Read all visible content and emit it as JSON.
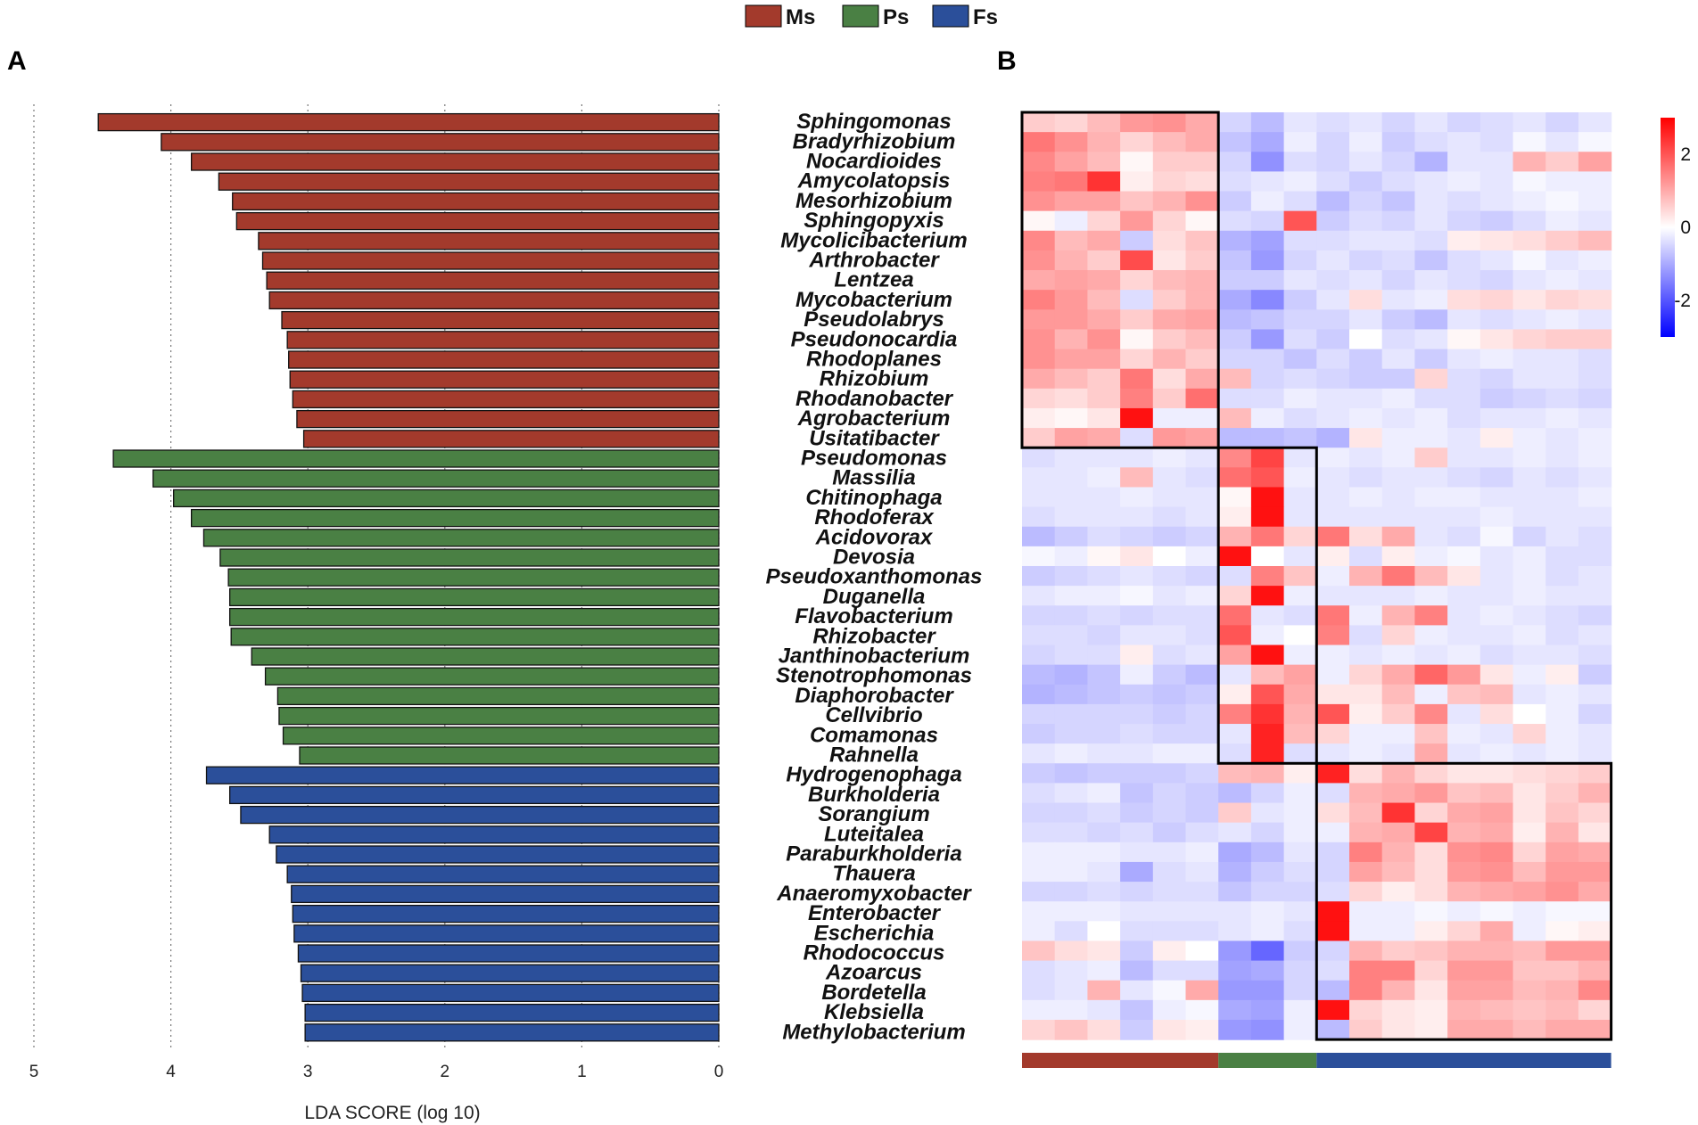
{
  "legend": [
    {
      "label": "Ms",
      "color": "#a33a2c"
    },
    {
      "label": "Ps",
      "color": "#4a8044"
    },
    {
      "label": "Fs",
      "color": "#2b4f9a"
    }
  ],
  "panel_a_letter": "A",
  "panel_b_letter": "B",
  "chart_data": [
    {
      "type": "bar",
      "orientation": "horizontal",
      "xlabel": "LDA SCORE (log 10)",
      "xlim": [
        5,
        0
      ],
      "xticks": [
        "5",
        "4",
        "3",
        "2",
        "1",
        "0"
      ],
      "grid": "vertical dotted",
      "groups": [
        {
          "name": "Ms",
          "color": "#a33a2c",
          "categories": [
            "Sphingomonas",
            "Bradyrhizobium",
            "Nocardioides",
            "Amycolatopsis",
            "Mesorhizobium",
            "Sphingopyxis",
            "Mycolicibacterium",
            "Arthrobacter",
            "Lentzea",
            "Mycobacterium",
            "Pseudolabrys",
            "Pseudonocardia",
            "Rhodoplanes",
            "Rhizobium",
            "Rhodanobacter",
            "Agrobacterium",
            "Usitatibacter"
          ],
          "values": [
            4.53,
            4.07,
            3.85,
            3.65,
            3.55,
            3.52,
            3.36,
            3.33,
            3.3,
            3.28,
            3.19,
            3.15,
            3.14,
            3.13,
            3.11,
            3.08,
            3.03
          ]
        },
        {
          "name": "Ps",
          "color": "#4a8044",
          "categories": [
            "Pseudomonas",
            "Massilia",
            "Chitinophaga",
            "Rhodoferax",
            "Acidovorax",
            "Devosia",
            "Pseudoxanthomonas",
            "Duganella",
            "Flavobacterium",
            "Rhizobacter",
            "Janthinobacterium",
            "Stenotrophomonas",
            "Diaphorobacter",
            "Cellvibrio",
            "Comamonas",
            "Rahnella"
          ],
          "values": [
            4.42,
            4.13,
            3.98,
            3.85,
            3.76,
            3.64,
            3.58,
            3.57,
            3.57,
            3.56,
            3.41,
            3.31,
            3.22,
            3.21,
            3.18,
            3.06
          ]
        },
        {
          "name": "Fs",
          "color": "#2b4f9a",
          "categories": [
            "Hydrogenophaga",
            "Burkholderia",
            "Sorangium",
            "Luteitalea",
            "Paraburkholderia",
            "Thauera",
            "Anaeromyxobacter",
            "Enterobacter",
            "Escherichia",
            "Rhodococcus",
            "Azoarcus",
            "Bordetella",
            "Klebsiella",
            "Methylobacterium"
          ],
          "values": [
            3.74,
            3.57,
            3.49,
            3.28,
            3.23,
            3.15,
            3.12,
            3.11,
            3.1,
            3.07,
            3.05,
            3.04,
            3.02,
            3.02
          ]
        }
      ]
    },
    {
      "type": "heatmap",
      "rows": [
        "Sphingomonas",
        "Bradyrhizobium",
        "Nocardioides",
        "Amycolatopsis",
        "Mesorhizobium",
        "Sphingopyxis",
        "Mycolicibacterium",
        "Arthrobacter",
        "Lentzea",
        "Mycobacterium",
        "Pseudolabrys",
        "Pseudonocardia",
        "Rhodoplanes",
        "Rhizobium",
        "Rhodanobacter",
        "Agrobacterium",
        "Usitatibacter",
        "Pseudomonas",
        "Massilia",
        "Chitinophaga",
        "Rhodoferax",
        "Acidovorax",
        "Devosia",
        "Pseudoxanthomonas",
        "Duganella",
        "Flavobacterium",
        "Rhizobacter",
        "Janthinobacterium",
        "Stenotrophomonas",
        "Diaphorobacter",
        "Cellvibrio",
        "Comamonas",
        "Rahnella",
        "Hydrogenophaga",
        "Burkholderia",
        "Sorangium",
        "Luteitalea",
        "Paraburkholderia",
        "Thauera",
        "Anaeromyxobacter",
        "Enterobacter",
        "Escherichia",
        "Rhodococcus",
        "Azoarcus",
        "Bordetella",
        "Klebsiella",
        "Methylobacterium"
      ],
      "column_groups": [
        {
          "name": "Ms",
          "color": "#a33a2c",
          "count": 6
        },
        {
          "name": "Ps",
          "color": "#4a8044",
          "count": 3
        },
        {
          "name": "Fs",
          "color": "#2b4f9a",
          "count": 9
        }
      ],
      "values": [
        [
          0.6,
          0.5,
          0.8,
          1.2,
          1.3,
          1.0,
          -0.5,
          -0.8,
          -0.3,
          -0.4,
          -0.3,
          -0.5,
          -0.3,
          -0.5,
          -0.4,
          -0.3,
          -0.5,
          -0.3
        ],
        [
          1.6,
          1.3,
          0.9,
          0.5,
          0.8,
          1.0,
          -0.7,
          -1.0,
          -0.2,
          -0.5,
          -0.2,
          -0.6,
          -0.4,
          -0.3,
          -0.4,
          -0.1,
          -0.3,
          -0.1
        ],
        [
          1.4,
          1.1,
          0.8,
          0.1,
          0.6,
          0.6,
          -0.5,
          -1.3,
          -0.4,
          -0.5,
          -0.3,
          -0.5,
          -0.9,
          -0.3,
          -0.3,
          0.9,
          0.6,
          1.1
        ],
        [
          1.5,
          1.6,
          2.4,
          0.2,
          0.5,
          0.4,
          -0.4,
          -0.3,
          -0.2,
          -0.4,
          -0.6,
          -0.4,
          -0.3,
          -0.2,
          -0.3,
          -0.1,
          -0.2,
          -0.2
        ],
        [
          1.3,
          1.1,
          1.1,
          0.7,
          0.9,
          1.3,
          -0.6,
          -0.2,
          -0.4,
          -0.8,
          -0.5,
          -0.7,
          -0.3,
          -0.4,
          -0.3,
          -0.2,
          -0.1,
          -0.2
        ],
        [
          0.1,
          -0.2,
          0.5,
          1.2,
          0.5,
          0.1,
          -0.4,
          -0.5,
          2.0,
          -0.6,
          -0.4,
          -0.5,
          -0.3,
          -0.5,
          -0.6,
          -0.4,
          -0.2,
          -0.3
        ],
        [
          1.4,
          0.8,
          1.0,
          -0.6,
          0.4,
          0.7,
          -0.9,
          -1.1,
          -0.4,
          -0.4,
          -0.3,
          -0.3,
          -0.4,
          0.2,
          0.3,
          0.4,
          0.6,
          0.8
        ],
        [
          1.3,
          0.9,
          0.6,
          2.1,
          0.3,
          0.6,
          -0.7,
          -1.2,
          -0.5,
          -0.3,
          -0.5,
          -0.4,
          -0.7,
          -0.4,
          -0.3,
          -0.1,
          -0.3,
          -0.2
        ],
        [
          1.0,
          1.1,
          1.0,
          0.5,
          0.8,
          0.9,
          -0.6,
          -0.6,
          -0.3,
          -0.4,
          -0.3,
          -0.5,
          -0.3,
          -0.4,
          -0.5,
          -0.3,
          -0.2,
          -0.3
        ],
        [
          1.5,
          1.2,
          0.8,
          -0.4,
          0.6,
          0.9,
          -1.0,
          -1.4,
          -0.6,
          -0.3,
          0.4,
          -0.3,
          -0.2,
          0.4,
          0.5,
          0.3,
          0.5,
          0.4
        ],
        [
          1.2,
          1.2,
          1.0,
          0.6,
          1.0,
          1.1,
          -0.8,
          -0.7,
          -0.5,
          -0.5,
          -0.3,
          -0.6,
          -0.8,
          -0.3,
          -0.4,
          -0.3,
          -0.2,
          -0.3
        ],
        [
          1.3,
          0.9,
          1.3,
          0.1,
          0.6,
          0.8,
          -0.6,
          -1.2,
          -0.4,
          -0.6,
          0.0,
          -0.4,
          -0.3,
          0.1,
          0.3,
          0.5,
          0.6,
          0.6
        ],
        [
          1.3,
          1.1,
          1.1,
          0.5,
          0.9,
          0.6,
          -0.5,
          -0.5,
          -0.7,
          -0.4,
          -0.6,
          -0.3,
          -0.6,
          -0.3,
          -0.2,
          -0.3,
          -0.3,
          -0.4
        ],
        [
          1.0,
          0.8,
          0.6,
          1.6,
          0.4,
          1.0,
          0.8,
          -0.5,
          -0.4,
          -0.5,
          -0.6,
          -0.6,
          0.5,
          -0.4,
          -0.5,
          -0.3,
          -0.3,
          -0.4
        ],
        [
          0.5,
          0.4,
          0.6,
          1.5,
          0.6,
          1.7,
          -0.4,
          -0.4,
          -0.2,
          -0.3,
          -0.3,
          -0.2,
          -0.4,
          -0.4,
          -0.6,
          -0.5,
          -0.4,
          -0.5
        ],
        [
          0.2,
          0.1,
          0.3,
          2.8,
          -0.2,
          -0.2,
          0.8,
          -0.2,
          -0.4,
          -0.3,
          -0.2,
          -0.3,
          -0.2,
          -0.4,
          -0.3,
          -0.3,
          -0.2,
          -0.3
        ],
        [
          0.6,
          1.1,
          1.0,
          -0.4,
          1.2,
          1.1,
          -0.8,
          -0.8,
          -0.7,
          -0.9,
          0.3,
          -0.2,
          -0.2,
          -0.3,
          0.2,
          -0.2,
          -0.3,
          -0.2
        ],
        [
          -0.4,
          -0.3,
          -0.3,
          -0.3,
          -0.2,
          -0.3,
          1.4,
          2.2,
          -0.3,
          -0.2,
          -0.3,
          -0.2,
          0.6,
          -0.3,
          -0.3,
          -0.2,
          -0.3,
          -0.2
        ],
        [
          -0.3,
          -0.3,
          -0.2,
          0.8,
          -0.3,
          -0.4,
          1.7,
          2.0,
          -0.2,
          -0.3,
          -0.4,
          -0.3,
          -0.3,
          -0.4,
          -0.5,
          -0.3,
          -0.4,
          -0.3
        ],
        [
          -0.3,
          -0.3,
          -0.3,
          -0.2,
          -0.3,
          -0.3,
          0.1,
          2.8,
          -0.3,
          -0.3,
          -0.2,
          -0.3,
          -0.2,
          -0.2,
          -0.3,
          -0.3,
          -0.3,
          -0.2
        ],
        [
          -0.4,
          -0.3,
          -0.3,
          -0.3,
          -0.4,
          -0.3,
          0.2,
          2.8,
          -0.3,
          -0.3,
          -0.3,
          -0.3,
          -0.3,
          -0.3,
          -0.2,
          -0.3,
          -0.3,
          -0.3
        ],
        [
          -0.8,
          -0.6,
          -0.4,
          -0.5,
          -0.6,
          -0.5,
          0.9,
          1.6,
          0.5,
          1.6,
          0.4,
          1.0,
          -0.3,
          -0.4,
          -0.1,
          -0.5,
          -0.3,
          -0.4
        ],
        [
          -0.1,
          -0.2,
          0.1,
          0.3,
          0.0,
          -0.2,
          2.8,
          0.0,
          -0.3,
          0.2,
          -0.4,
          0.2,
          -0.2,
          -0.1,
          -0.3,
          -0.2,
          -0.4,
          -0.4
        ],
        [
          -0.6,
          -0.5,
          -0.4,
          -0.3,
          -0.4,
          -0.5,
          -0.4,
          1.5,
          0.7,
          -0.2,
          0.9,
          1.6,
          0.8,
          0.3,
          -0.3,
          -0.2,
          -0.4,
          -0.3
        ],
        [
          -0.3,
          -0.2,
          -0.2,
          -0.1,
          -0.3,
          -0.2,
          0.5,
          2.8,
          -0.2,
          -0.3,
          -0.3,
          -0.3,
          -0.2,
          -0.3,
          -0.3,
          -0.2,
          -0.3,
          -0.3
        ],
        [
          -0.5,
          -0.5,
          -0.4,
          -0.5,
          -0.4,
          -0.4,
          1.7,
          -0.3,
          -0.4,
          1.6,
          -0.2,
          0.9,
          1.5,
          -0.3,
          -0.2,
          -0.3,
          -0.4,
          -0.5
        ],
        [
          -0.4,
          -0.4,
          -0.5,
          -0.3,
          -0.3,
          -0.4,
          2.0,
          -0.2,
          0.0,
          1.5,
          -0.4,
          0.5,
          -0.2,
          -0.3,
          -0.3,
          -0.2,
          -0.4,
          -0.3
        ],
        [
          -0.5,
          -0.4,
          -0.4,
          0.2,
          -0.4,
          -0.3,
          1.1,
          2.8,
          -0.2,
          -0.2,
          -0.3,
          -0.2,
          -0.3,
          -0.2,
          -0.4,
          -0.3,
          -0.3,
          -0.4
        ],
        [
          -0.8,
          -0.9,
          -0.7,
          -0.2,
          -0.6,
          -0.8,
          -0.3,
          0.8,
          1.1,
          -0.2,
          0.5,
          1.0,
          1.8,
          1.2,
          0.3,
          -0.2,
          0.2,
          -0.6
        ],
        [
          -0.9,
          -0.8,
          -0.7,
          -0.6,
          -0.7,
          -0.6,
          0.2,
          2.0,
          1.0,
          0.3,
          0.3,
          0.8,
          -0.2,
          0.7,
          0.8,
          -0.3,
          -0.2,
          -0.3
        ],
        [
          -0.5,
          -0.5,
          -0.5,
          -0.5,
          -0.6,
          -0.5,
          1.5,
          2.4,
          0.9,
          2.0,
          0.2,
          0.6,
          1.4,
          -0.3,
          0.4,
          0.0,
          -0.2,
          -0.5
        ],
        [
          -0.6,
          -0.5,
          -0.5,
          -0.4,
          -0.5,
          -0.5,
          -0.3,
          2.6,
          0.8,
          0.5,
          -0.2,
          -0.2,
          0.7,
          -0.2,
          -0.3,
          0.5,
          -0.2,
          -0.3
        ],
        [
          -0.3,
          -0.2,
          -0.3,
          -0.3,
          -0.2,
          -0.2,
          -0.4,
          2.6,
          -0.4,
          -0.3,
          -0.2,
          -0.3,
          1.0,
          -0.3,
          -0.2,
          -0.3,
          -0.2,
          -0.3
        ],
        [
          -0.6,
          -0.7,
          -0.6,
          -0.6,
          -0.6,
          -0.5,
          0.8,
          0.9,
          0.2,
          2.6,
          0.4,
          0.9,
          0.5,
          0.3,
          0.3,
          0.4,
          0.5,
          0.6
        ],
        [
          -0.4,
          -0.3,
          -0.2,
          -0.7,
          -0.5,
          -0.6,
          -0.8,
          -0.5,
          -0.2,
          -0.4,
          0.9,
          1.0,
          1.2,
          0.7,
          0.8,
          0.3,
          0.6,
          0.9
        ],
        [
          -0.5,
          -0.5,
          -0.4,
          -0.6,
          -0.5,
          -0.6,
          0.6,
          -0.3,
          -0.2,
          0.4,
          0.8,
          2.4,
          0.5,
          1.0,
          1.1,
          0.3,
          0.7,
          0.5
        ],
        [
          -0.4,
          -0.4,
          -0.5,
          -0.4,
          -0.6,
          -0.4,
          -0.3,
          -0.5,
          -0.2,
          -0.2,
          0.9,
          1.0,
          2.2,
          0.9,
          1.0,
          0.2,
          0.9,
          0.3
        ],
        [
          -0.2,
          -0.2,
          -0.2,
          -0.3,
          -0.3,
          -0.2,
          -1.0,
          -0.8,
          -0.3,
          -0.5,
          1.5,
          0.9,
          0.4,
          1.3,
          1.4,
          0.5,
          1.1,
          1.0
        ],
        [
          -0.2,
          -0.2,
          -0.3,
          -1.0,
          -0.4,
          -0.3,
          -0.9,
          -0.6,
          -0.4,
          -0.5,
          1.1,
          0.8,
          0.4,
          1.2,
          1.3,
          0.8,
          1.2,
          1.2
        ],
        [
          -0.5,
          -0.5,
          -0.4,
          -0.5,
          -0.4,
          -0.4,
          -0.7,
          -0.5,
          -0.5,
          -0.4,
          0.5,
          0.2,
          0.4,
          0.9,
          1.0,
          1.1,
          1.3,
          1.0
        ],
        [
          -0.2,
          -0.2,
          -0.2,
          -0.3,
          -0.3,
          -0.3,
          -0.3,
          -0.2,
          -0.3,
          2.8,
          -0.2,
          -0.2,
          -0.1,
          -0.2,
          -0.1,
          -0.2,
          -0.1,
          -0.1
        ],
        [
          -0.2,
          -0.4,
          0.0,
          -0.4,
          -0.4,
          -0.4,
          -0.3,
          -0.2,
          -0.4,
          2.8,
          -0.2,
          -0.2,
          0.2,
          0.5,
          1.0,
          -0.2,
          0.1,
          0.2
        ],
        [
          0.7,
          0.4,
          0.3,
          -0.6,
          0.2,
          0.0,
          -1.2,
          -1.8,
          -0.6,
          -0.5,
          0.9,
          0.6,
          0.7,
          0.9,
          0.9,
          0.8,
          1.2,
          1.2
        ],
        [
          -0.4,
          -0.3,
          -0.2,
          -0.8,
          -0.4,
          -0.4,
          -1.1,
          -1.0,
          -0.5,
          -0.4,
          1.5,
          1.5,
          0.5,
          1.2,
          1.2,
          0.7,
          0.7,
          0.9
        ],
        [
          -0.4,
          -0.3,
          0.9,
          -0.3,
          -0.1,
          1.0,
          -1.2,
          -1.2,
          -0.5,
          -0.8,
          1.5,
          0.9,
          0.3,
          1.1,
          1.1,
          0.8,
          0.9,
          1.4
        ],
        [
          -0.2,
          -0.2,
          -0.3,
          -0.7,
          -0.2,
          -0.1,
          -1.0,
          -1.1,
          -0.2,
          2.8,
          0.5,
          0.3,
          0.2,
          0.9,
          0.8,
          0.7,
          0.8,
          0.5
        ],
        [
          0.5,
          0.7,
          0.4,
          -0.6,
          0.3,
          0.2,
          -1.2,
          -1.3,
          -0.2,
          -0.8,
          0.6,
          0.3,
          0.2,
          1.0,
          1.0,
          0.8,
          1.0,
          1.0
        ]
      ],
      "boxes": [
        {
          "group": "Ms",
          "rows": [
            0,
            16
          ],
          "cols": [
            0,
            5
          ]
        },
        {
          "group": "Ps",
          "rows": [
            17,
            32
          ],
          "cols": [
            6,
            8
          ]
        },
        {
          "group": "Fs",
          "rows": [
            33,
            46
          ],
          "cols": [
            9,
            17
          ]
        }
      ],
      "colorbar": {
        "min": -3,
        "max": 3,
        "ticks": [
          "2",
          "0",
          "-2"
        ],
        "low_color": "#0000ff",
        "mid_color": "#ffffff",
        "high_color": "#ff0000"
      }
    }
  ]
}
